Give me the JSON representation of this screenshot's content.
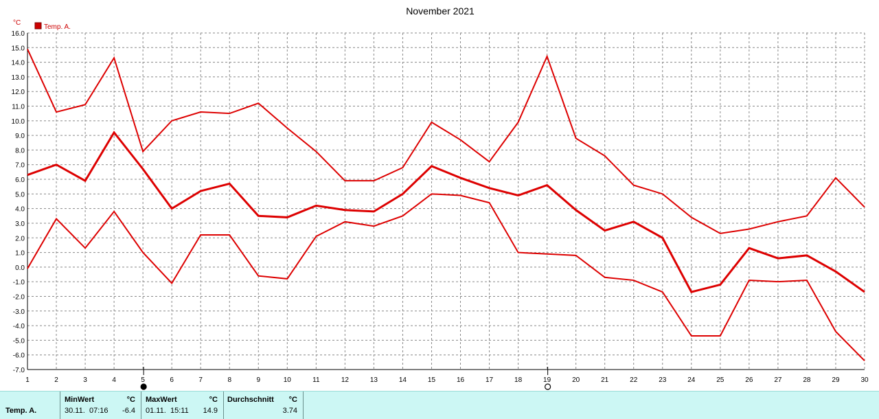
{
  "chart_data": {
    "type": "line",
    "title": "November 2021",
    "unit_label": "°C",
    "legend": {
      "entries": [
        "Temp. A."
      ],
      "placement": "top-left",
      "color": "#cc0000"
    },
    "x": [
      1,
      2,
      3,
      4,
      5,
      6,
      7,
      8,
      9,
      10,
      11,
      12,
      13,
      14,
      15,
      16,
      17,
      18,
      19,
      20,
      21,
      22,
      23,
      24,
      25,
      26,
      27,
      28,
      29,
      30
    ],
    "xlim": [
      1,
      30
    ],
    "ylim": [
      -7,
      16
    ],
    "y_ticks": [
      "16.0",
      "15.0",
      "14.0",
      "13.0",
      "12.0",
      "11.0",
      "10.0",
      "9.0",
      "8.0",
      "7.0",
      "6.0",
      "5.0",
      "4.0",
      "3.0",
      "2.0",
      "1.0",
      "0.0",
      "-1.0",
      "-2.0",
      "-3.0",
      "-4.0",
      "-5.0",
      "-6.0",
      "-7.0"
    ],
    "grid": true,
    "series": [
      {
        "role": "max",
        "color": "#dd0000",
        "values": [
          14.9,
          10.6,
          11.1,
          14.3,
          7.9,
          10.0,
          10.6,
          10.5,
          11.2,
          9.5,
          7.9,
          5.9,
          5.9,
          6.8,
          9.9,
          8.7,
          7.2,
          9.9,
          14.4,
          8.8,
          7.6,
          5.6,
          5.0,
          3.4,
          2.3,
          2.6,
          3.1,
          3.5,
          6.1,
          4.1
        ]
      },
      {
        "role": "avg",
        "color": "#dd0000",
        "values": [
          6.3,
          7.0,
          5.9,
          9.2,
          6.7,
          4.0,
          5.2,
          5.7,
          3.5,
          3.4,
          4.2,
          3.9,
          3.8,
          5.0,
          6.9,
          6.1,
          5.4,
          4.9,
          5.6,
          3.9,
          2.5,
          3.1,
          2.0,
          -1.7,
          -1.2,
          1.3,
          0.6,
          0.8,
          -0.3,
          -1.7
        ]
      },
      {
        "role": "min",
        "color": "#dd0000",
        "values": [
          -0.1,
          3.3,
          1.3,
          3.8,
          1.0,
          -1.1,
          2.2,
          2.2,
          -0.6,
          -0.8,
          2.1,
          3.1,
          2.8,
          3.5,
          5.0,
          4.9,
          4.4,
          1.0,
          0.9,
          0.8,
          -0.7,
          -0.9,
          -1.7,
          -4.7,
          -4.7,
          -0.9,
          -1.0,
          -0.9,
          -4.4,
          -6.4
        ]
      }
    ],
    "moon_markers": [
      {
        "day": 5,
        "phase": "new-moon"
      },
      {
        "day": 19,
        "phase": "full-moon"
      }
    ]
  },
  "stats": {
    "row_label": "Temp. A.",
    "min": {
      "header": "MinWert",
      "unit": "°C",
      "date": "30.11.",
      "time": "07:16",
      "value": "-6.4"
    },
    "max": {
      "header": "MaxWert",
      "unit": "°C",
      "date": "01.11.",
      "time": "15:11",
      "value": "14.9"
    },
    "avg": {
      "header": "Durchschnitt",
      "unit": "°C",
      "value": "3.74"
    }
  }
}
